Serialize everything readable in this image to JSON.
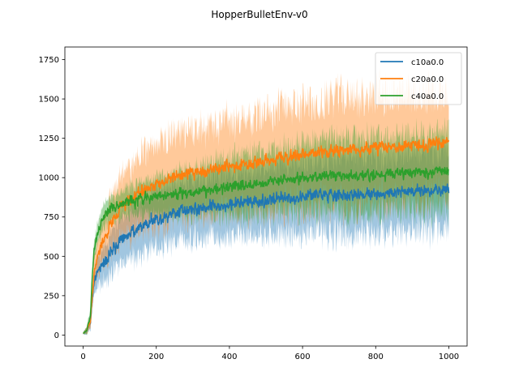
{
  "chart_data": {
    "type": "line",
    "title": "HopperBulletEnv-v0",
    "xlabel": "",
    "ylabel": "",
    "xlim": [
      -50,
      1050
    ],
    "ylim": [
      -70,
      1830
    ],
    "xticks": [
      0,
      200,
      400,
      600,
      800,
      1000
    ],
    "yticks": [
      0,
      250,
      500,
      750,
      1000,
      1250,
      1500,
      1750
    ],
    "grid": false,
    "legend_position": "top-right",
    "series": [
      {
        "name": "c10a0.0",
        "color": "#1f77b4",
        "mean_curve": [
          [
            0,
            10
          ],
          [
            10,
            30
          ],
          [
            20,
            90
          ],
          [
            25,
            230
          ],
          [
            30,
            330
          ],
          [
            40,
            400
          ],
          [
            50,
            440
          ],
          [
            75,
            520
          ],
          [
            100,
            590
          ],
          [
            150,
            680
          ],
          [
            200,
            740
          ],
          [
            250,
            780
          ],
          [
            300,
            800
          ],
          [
            400,
            830
          ],
          [
            500,
            860
          ],
          [
            600,
            880
          ],
          [
            700,
            890
          ],
          [
            800,
            900
          ],
          [
            900,
            910
          ],
          [
            1000,
            930
          ]
        ],
        "band_halfwidth": [
          [
            0,
            5
          ],
          [
            20,
            40
          ],
          [
            40,
            100
          ],
          [
            100,
            150
          ],
          [
            200,
            180
          ],
          [
            400,
            200
          ],
          [
            700,
            240
          ],
          [
            1000,
            250
          ]
        ]
      },
      {
        "name": "c20a0.0",
        "color": "#ff7f0e",
        "mean_curve": [
          [
            0,
            10
          ],
          [
            10,
            30
          ],
          [
            20,
            90
          ],
          [
            25,
            260
          ],
          [
            30,
            400
          ],
          [
            40,
            500
          ],
          [
            50,
            560
          ],
          [
            75,
            700
          ],
          [
            100,
            800
          ],
          [
            150,
            900
          ],
          [
            200,
            960
          ],
          [
            250,
            1000
          ],
          [
            300,
            1030
          ],
          [
            400,
            1070
          ],
          [
            500,
            1110
          ],
          [
            600,
            1150
          ],
          [
            700,
            1170
          ],
          [
            800,
            1190
          ],
          [
            900,
            1200
          ],
          [
            1000,
            1230
          ]
        ],
        "band_halfwidth": [
          [
            0,
            5
          ],
          [
            20,
            40
          ],
          [
            40,
            120
          ],
          [
            100,
            200
          ],
          [
            200,
            260
          ],
          [
            400,
            280
          ],
          [
            700,
            340
          ],
          [
            1000,
            330
          ]
        ]
      },
      {
        "name": "c40a0.0",
        "color": "#2ca02c",
        "mean_curve": [
          [
            0,
            10
          ],
          [
            10,
            30
          ],
          [
            20,
            120
          ],
          [
            25,
            380
          ],
          [
            30,
            550
          ],
          [
            40,
            650
          ],
          [
            50,
            720
          ],
          [
            75,
            790
          ],
          [
            100,
            830
          ],
          [
            150,
            860
          ],
          [
            200,
            880
          ],
          [
            250,
            900
          ],
          [
            300,
            910
          ],
          [
            400,
            940
          ],
          [
            500,
            970
          ],
          [
            600,
            1000
          ],
          [
            700,
            1010
          ],
          [
            800,
            1020
          ],
          [
            900,
            1030
          ],
          [
            1000,
            1040
          ]
        ],
        "band_halfwidth": [
          [
            0,
            5
          ],
          [
            20,
            40
          ],
          [
            40,
            70
          ],
          [
            100,
            80
          ],
          [
            200,
            120
          ],
          [
            400,
            180
          ],
          [
            700,
            230
          ],
          [
            1000,
            240
          ]
        ]
      }
    ],
    "num_points": 1001,
    "noise": {
      "c10a0.0": 85,
      "c20a0.0": 80,
      "c40a0.0": 75
    }
  }
}
